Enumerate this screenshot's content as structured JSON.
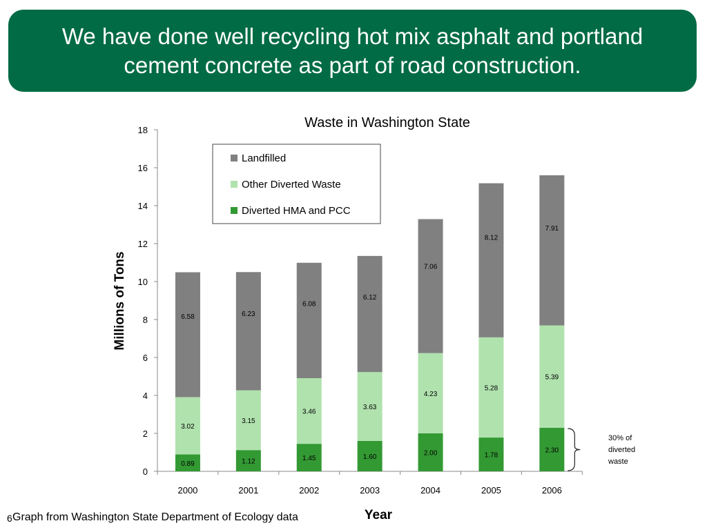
{
  "slide": {
    "title": "We have done well recycling hot mix asphalt and portland cement concrete as part of road construction.",
    "source_note": "Graph from Washington State Department of Ecology data",
    "slide_number": "6"
  },
  "colors": {
    "banner": "#006b45",
    "landfilled": "#808080",
    "other_diverted": "#b0e2ae",
    "diverted_hma_pcc": "#339933"
  },
  "chart_data": {
    "type": "bar",
    "stacked": true,
    "title": "Waste in Washington State",
    "xlabel": "Year",
    "ylabel": "Millions of Tons",
    "ylim": [
      0,
      18
    ],
    "yticks": [
      0,
      2,
      4,
      6,
      8,
      10,
      12,
      14,
      16,
      18
    ],
    "categories": [
      "2000",
      "2001",
      "2002",
      "2003",
      "2004",
      "2005",
      "2006"
    ],
    "series": [
      {
        "name": "Diverted HMA and PCC",
        "values": [
          0.89,
          1.12,
          1.45,
          1.6,
          2.0,
          1.78,
          2.3
        ],
        "labels": [
          "0.89",
          "1.12",
          "1.45",
          "1.60",
          "2.00",
          "1.78",
          "2.30"
        ],
        "color": "#339933"
      },
      {
        "name": "Other Diverted Waste",
        "values": [
          3.02,
          3.15,
          3.46,
          3.63,
          4.23,
          5.28,
          5.39
        ],
        "labels": [
          "3.02",
          "3.15",
          "3.46",
          "3.63",
          "4.23",
          "5.28",
          "5.39"
        ],
        "color": "#b0e2ae"
      },
      {
        "name": "Landfilled",
        "values": [
          6.58,
          6.23,
          6.08,
          6.12,
          7.06,
          8.12,
          7.91
        ],
        "labels": [
          "6.58",
          "6.23",
          "6.08",
          "6.12",
          "7.06",
          "8.12",
          "7.91"
        ],
        "color": "#808080"
      }
    ],
    "legend_order": [
      "Landfilled",
      "Other Diverted Waste",
      "Diverted HMA and PCC"
    ],
    "legend_position": "top-center",
    "grid": false,
    "annotation": {
      "text_lines": [
        "30% of",
        "diverted",
        "waste"
      ],
      "target_category": "2006",
      "target_series": "Diverted HMA and PCC"
    }
  }
}
